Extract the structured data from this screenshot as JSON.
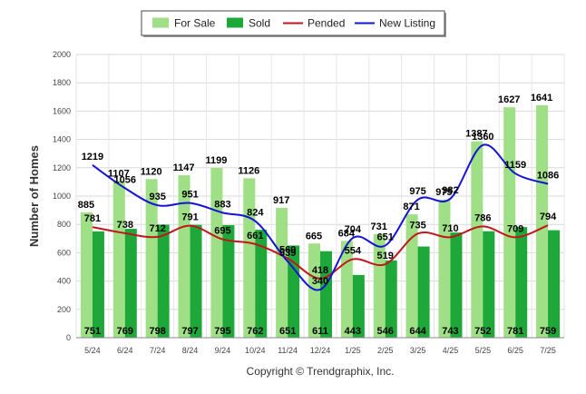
{
  "chart_data": {
    "type": "bar",
    "categories": [
      "5/24",
      "6/24",
      "7/24",
      "8/24",
      "9/24",
      "10/24",
      "11/24",
      "12/24",
      "1/25",
      "2/25",
      "3/25",
      "4/25",
      "5/25",
      "6/25",
      "7/25"
    ],
    "ylabel": "Number of Homes",
    "ylim": [
      0,
      2000
    ],
    "yticks": [
      0,
      200,
      400,
      600,
      800,
      1000,
      1200,
      1400,
      1600,
      1800,
      2000
    ],
    "grid": true,
    "legend_position": "top-center",
    "series": [
      {
        "name": "For Sale",
        "kind": "bar",
        "color": "#9fdf85",
        "values": [
          885,
          1107,
          1120,
          1147,
          1199,
          1126,
          917,
          665,
          684,
          731,
          871,
          975,
          1387,
          1627,
          1641
        ]
      },
      {
        "name": "Sold",
        "kind": "bar",
        "color": "#1ea83a",
        "values": [
          751,
          769,
          798,
          797,
          795,
          762,
          651,
          611,
          443,
          546,
          644,
          743,
          752,
          781,
          759
        ]
      },
      {
        "name": "Pended",
        "kind": "line",
        "color": "#c0161c",
        "values": [
          781,
          738,
          712,
          791,
          695,
          661,
          560,
          418,
          554,
          519,
          735,
          710,
          786,
          709,
          794
        ]
      },
      {
        "name": "New Listing",
        "kind": "line",
        "color": "#1414d6",
        "values": [
          1219,
          1056,
          935,
          951,
          883,
          824,
          539,
          340,
          704,
          651,
          975,
          982,
          1360,
          1159,
          1086
        ]
      }
    ]
  },
  "credit": "Copyright © Trendgraphix, Inc."
}
